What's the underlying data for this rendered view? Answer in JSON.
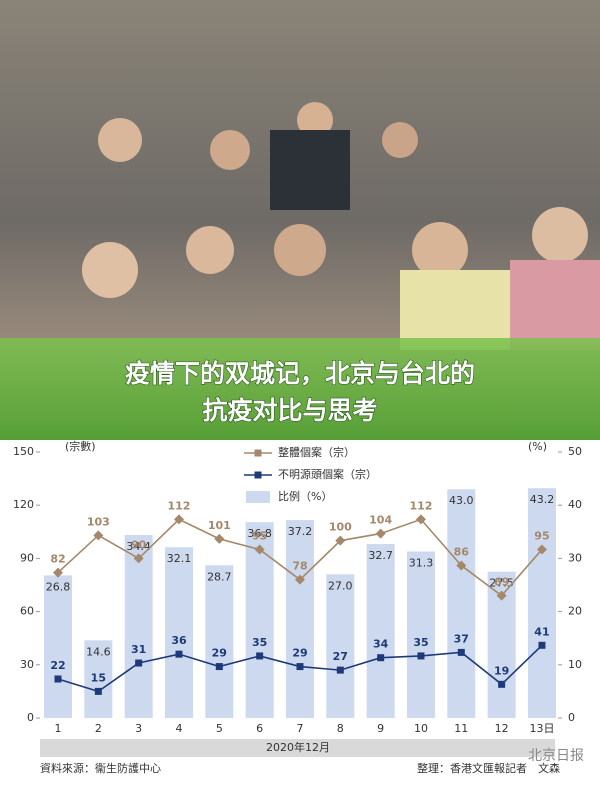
{
  "banner": {
    "title_lines": [
      "疫情下的双城记，北京与台北的",
      "抗疫对比与思考"
    ]
  },
  "chart_data": {
    "type": "combo",
    "categories": [
      "1",
      "2",
      "3",
      "4",
      "5",
      "6",
      "7",
      "8",
      "9",
      "10",
      "11",
      "12",
      "13日"
    ],
    "x_label": "2020年12月",
    "y_label": "(宗數)",
    "y2_label": "(%)",
    "ylim": [
      0,
      150
    ],
    "yticks": [
      0,
      30,
      60,
      90,
      120,
      150
    ],
    "y2lim": [
      0,
      50
    ],
    "y2ticks": [
      0,
      10,
      20,
      30,
      40,
      50
    ],
    "grid": false,
    "series": [
      {
        "name": "整體個案（宗）",
        "type": "line",
        "color": "#a5876a",
        "values": [
          82,
          103,
          90,
          112,
          101,
          95,
          78,
          100,
          104,
          112,
          86,
          69,
          95
        ]
      },
      {
        "name": "不明源頭個案（宗）",
        "type": "line",
        "color": "#1f3a78",
        "values": [
          22,
          15,
          31,
          36,
          29,
          35,
          29,
          27,
          34,
          35,
          37,
          19,
          41
        ]
      },
      {
        "name": "比例（%）",
        "type": "bar",
        "axis": "y2",
        "color": "#cdd9ee",
        "values": [
          26.8,
          14.6,
          34.4,
          32.1,
          28.7,
          36.8,
          37.2,
          27,
          32.7,
          31.3,
          43,
          27.5,
          43.2
        ],
        "value_labels": [
          "26.8",
          "14.6",
          "34.4",
          "32.1",
          "28.7",
          "36.8",
          "37.2",
          "27.0",
          "32.7",
          "31.3",
          "43.0",
          "27.5",
          "43.2"
        ]
      }
    ],
    "source": "資料來源：衞生防護中心",
    "credit": "整理：香港文匯報記者　文森",
    "watermark": "北京日报"
  }
}
